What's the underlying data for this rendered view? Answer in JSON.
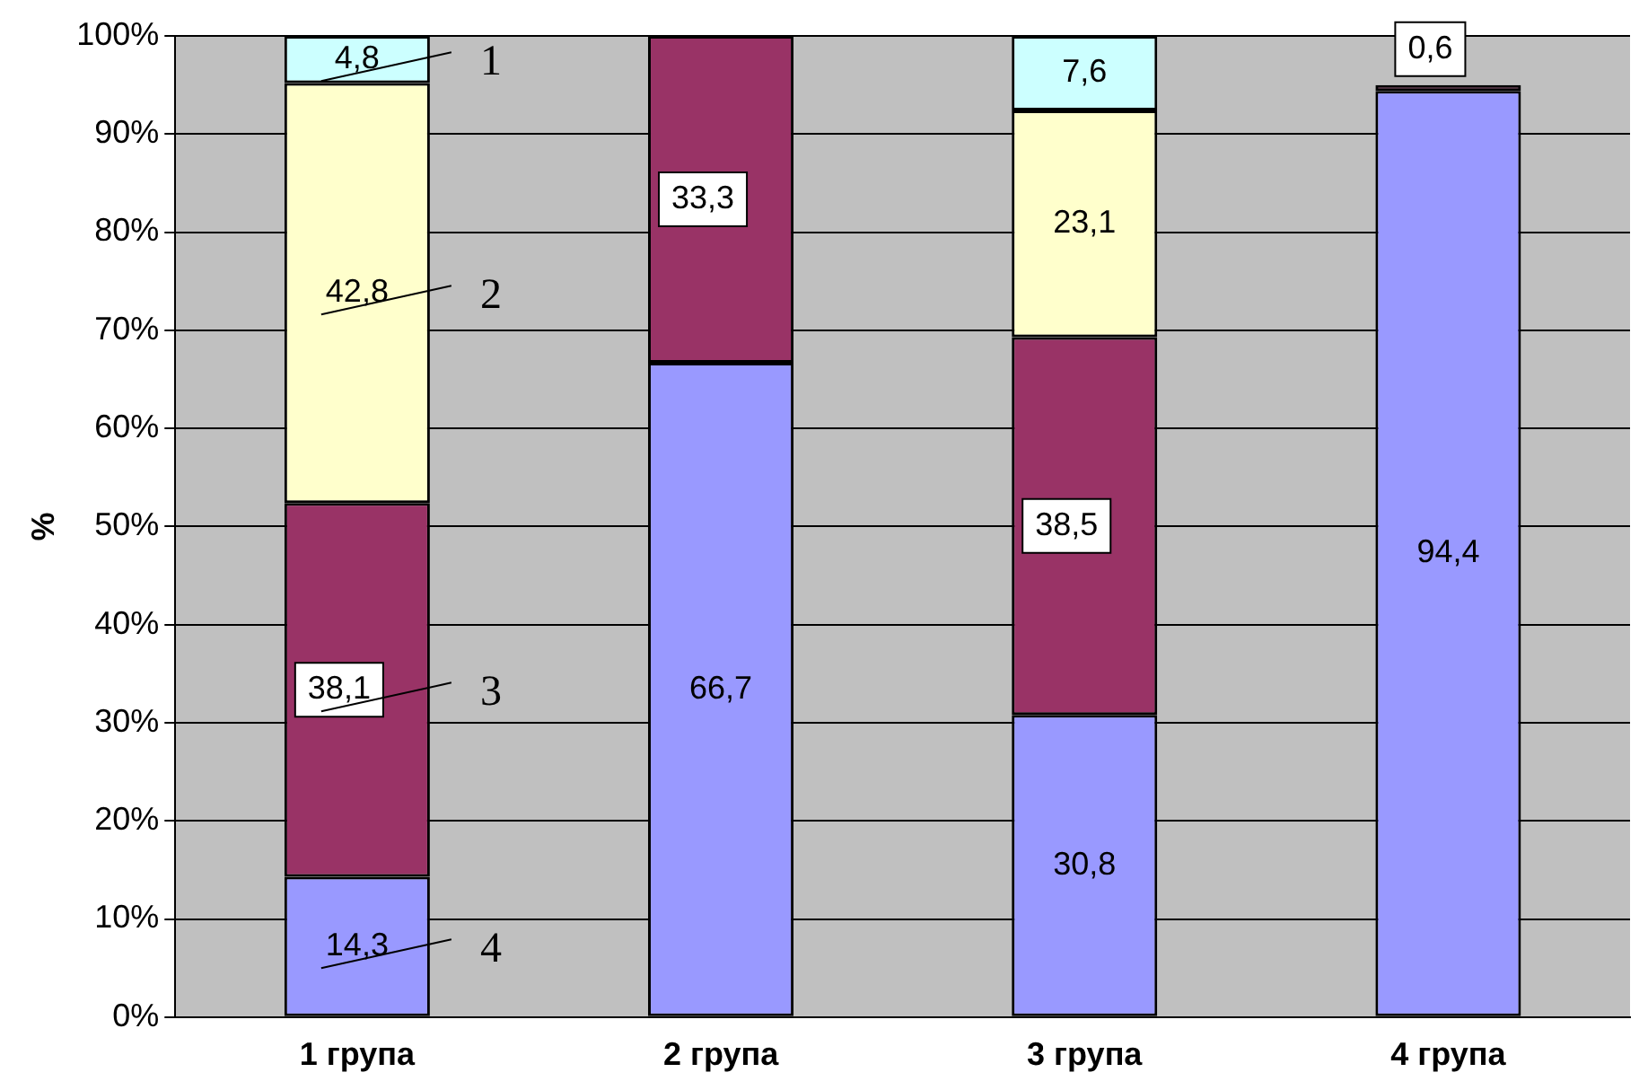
{
  "chart_data": {
    "type": "bar",
    "stacked": true,
    "ylabel": "%",
    "categories": [
      "1 група",
      "2 група",
      "3 група",
      "4 група"
    ],
    "series": [
      {
        "name": "4",
        "color": "#9999ff",
        "values": [
          14.3,
          66.7,
          30.8,
          94.4
        ],
        "value_labels": [
          "14,3",
          "66,7",
          "30,8",
          "94,4"
        ]
      },
      {
        "name": "3",
        "color": "#993366",
        "values": [
          38.1,
          33.3,
          38.5,
          0.6
        ],
        "value_labels": [
          "38,1",
          "33,3",
          "38,5",
          "0,6"
        ]
      },
      {
        "name": "2",
        "color": "#ffffcc",
        "values": [
          42.8,
          null,
          23.1,
          null
        ],
        "value_labels": [
          "42,8",
          null,
          "23,1",
          null
        ]
      },
      {
        "name": "1",
        "color": "#ccffff",
        "values": [
          4.8,
          null,
          7.6,
          null
        ],
        "value_labels": [
          "4,8",
          null,
          "7,6",
          null
        ]
      }
    ],
    "ylim": [
      0,
      100
    ],
    "yticks": [
      {
        "value": 0,
        "label": "0%"
      },
      {
        "value": 10,
        "label": "10%"
      },
      {
        "value": 20,
        "label": "20%"
      },
      {
        "value": 30,
        "label": "30%"
      },
      {
        "value": 40,
        "label": "40%"
      },
      {
        "value": 50,
        "label": "50%"
      },
      {
        "value": 60,
        "label": "60%"
      },
      {
        "value": 70,
        "label": "70%"
      },
      {
        "value": 80,
        "label": "80%"
      },
      {
        "value": 90,
        "label": "90%"
      },
      {
        "value": 100,
        "label": "100%"
      }
    ],
    "grid": "y",
    "legend": false
  }
}
